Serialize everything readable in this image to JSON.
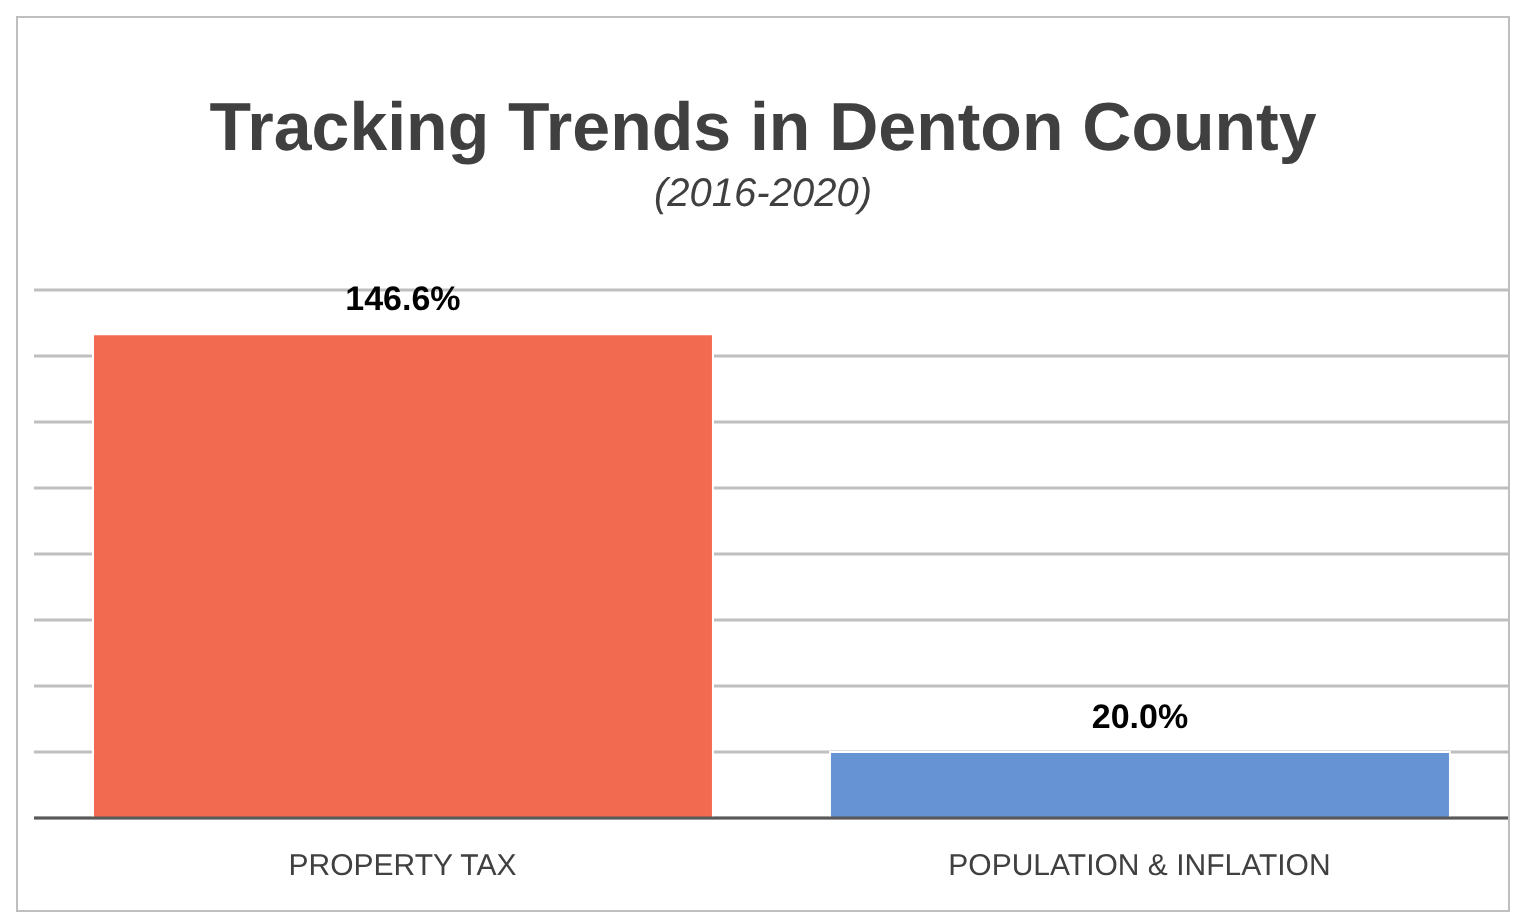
{
  "chart_data": {
    "type": "bar",
    "title": "Tracking Trends in Denton County",
    "subtitle": "(2016-2020)",
    "categories": [
      "PROPERTY TAX",
      "POPULATION & INFLATION"
    ],
    "values": [
      146.6,
      20.0
    ],
    "value_labels": [
      "146.6%",
      "20.0%"
    ],
    "colors": [
      "#f26a4f",
      "#6593d3"
    ],
    "grid": "y",
    "tick_labels": "x"
  }
}
